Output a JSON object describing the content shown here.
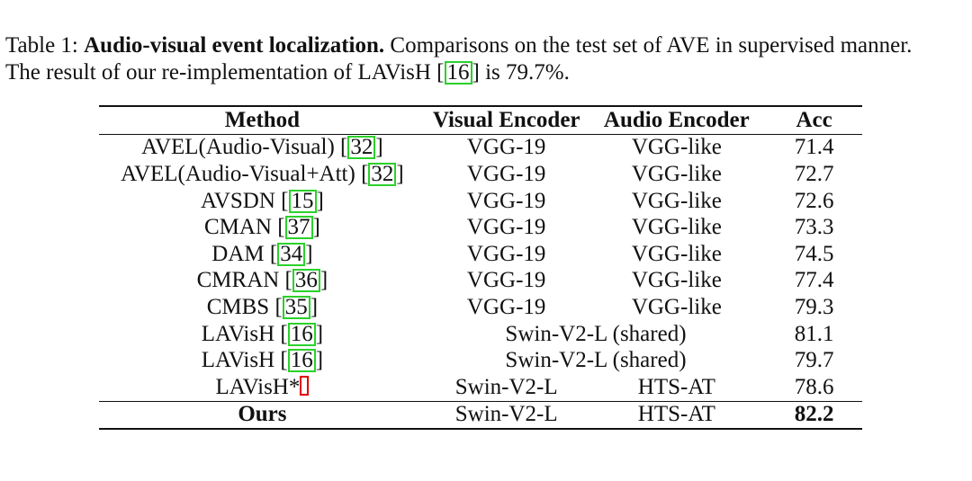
{
  "caption": {
    "label": "Table 1:",
    "bold": "Audio-visual event localization.",
    "text1": "Comparisons on the test set of AVE in supervised manner.",
    "text2a": "The result of our re-implementation of LAVisH [",
    "ref": "16",
    "text2b": "] is 79.7%."
  },
  "table": {
    "headers": [
      "Method",
      "Visual Encoder",
      "Audio Encoder",
      "Acc"
    ],
    "rows": [
      {
        "method": "AVEL(Audio-Visual) [",
        "ref": "32",
        "visual": "VGG-19",
        "audio": "VGG-like",
        "acc": "71.4"
      },
      {
        "method": "AVEL(Audio-Visual+Att) [",
        "ref": "32",
        "visual": "VGG-19",
        "audio": "VGG-like",
        "acc": "72.7"
      },
      {
        "method": "AVSDN [",
        "ref": "15",
        "visual": "VGG-19",
        "audio": "VGG-like",
        "acc": "72.6"
      },
      {
        "method": "CMAN [",
        "ref": "37",
        "visual": "VGG-19",
        "audio": "VGG-like",
        "acc": "73.3"
      },
      {
        "method": "DAM [",
        "ref": "34",
        "visual": "VGG-19",
        "audio": "VGG-like",
        "acc": "74.5"
      },
      {
        "method": "CMRAN [",
        "ref": "36",
        "visual": "VGG-19",
        "audio": "VGG-like",
        "acc": "77.4"
      },
      {
        "method": "CMBS [",
        "ref": "35",
        "visual": "VGG-19",
        "audio": "VGG-like",
        "acc": "79.3"
      },
      {
        "method": "LAVisH [",
        "ref": "16",
        "shared": "Swin-V2-L (shared)",
        "acc": "81.1"
      },
      {
        "method": "LAVisH [",
        "ref": "16",
        "shared": "Swin-V2-L (shared)",
        "acc": "79.7"
      },
      {
        "method": "LAVisH*",
        "visual": "Swin-V2-L",
        "audio": "HTS-AT",
        "acc": "78.6"
      }
    ],
    "ours": {
      "method": "Ours",
      "visual": "Swin-V2-L",
      "audio": "HTS-AT",
      "acc": "82.2"
    }
  }
}
